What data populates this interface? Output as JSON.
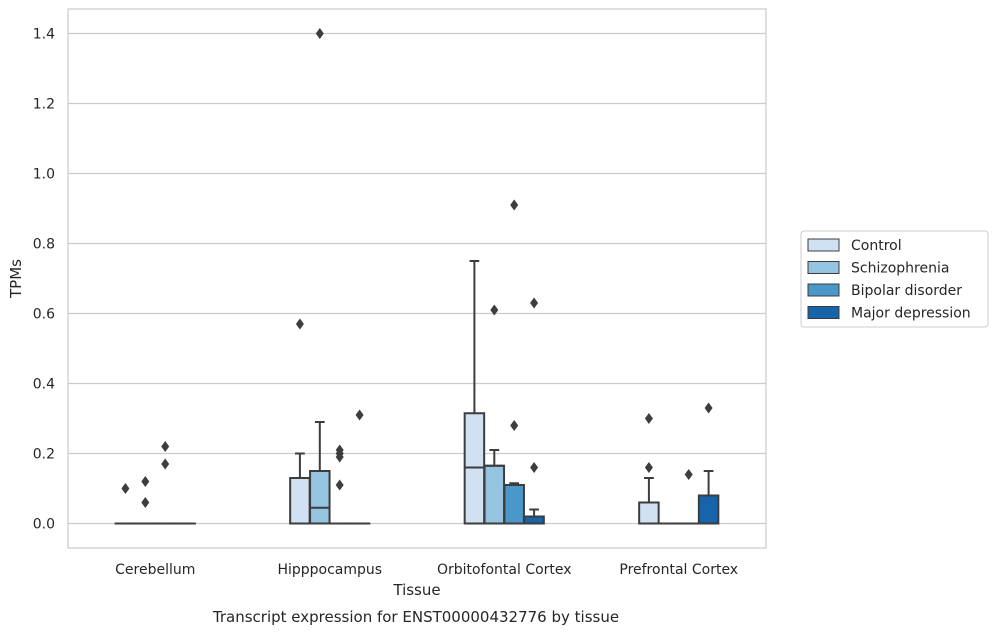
{
  "chart_data": {
    "type": "box",
    "title": "",
    "caption": "Transcript expression for ENST00000432776 by tissue",
    "xlabel": "Tissue",
    "ylabel": "TPMs",
    "ylim": [
      -0.07,
      1.47
    ],
    "yticks": [
      "0.0",
      "0.2",
      "0.4",
      "0.6",
      "0.8",
      "1.0",
      "1.2",
      "1.4"
    ],
    "grid": "horizontal",
    "legend_position": "right",
    "categories": [
      "Cerebellum",
      "Hipppocampus",
      "Orbitofontal Cortex",
      "Prefrontal Cortex"
    ],
    "series": [
      {
        "name": "Control",
        "color": "#d0e1f2",
        "boxes": [
          {
            "q1": 0,
            "median": 0,
            "q3": 0,
            "whisker_low": 0,
            "whisker_high": 0,
            "outliers": [
              0.1
            ]
          },
          {
            "q1": 0,
            "median": 0,
            "q3": 0.13,
            "whisker_low": 0,
            "whisker_high": 0.2,
            "outliers": [
              0.57
            ]
          },
          {
            "q1": 0,
            "median": 0.16,
            "q3": 0.315,
            "whisker_low": 0,
            "whisker_high": 0.75,
            "outliers": []
          },
          {
            "q1": 0,
            "median": 0,
            "q3": 0.06,
            "whisker_low": 0,
            "whisker_high": 0.13,
            "outliers": [
              0.16,
              0.3
            ]
          }
        ]
      },
      {
        "name": "Schizophrenia",
        "color": "#94c4df",
        "boxes": [
          {
            "q1": 0,
            "median": 0,
            "q3": 0,
            "whisker_low": 0,
            "whisker_high": 0,
            "outliers": [
              0.06,
              0.12
            ]
          },
          {
            "q1": 0,
            "median": 0.045,
            "q3": 0.15,
            "whisker_low": 0,
            "whisker_high": 0.29,
            "outliers": [
              1.4
            ]
          },
          {
            "q1": 0,
            "median": 0.165,
            "q3": 0.165,
            "whisker_low": 0,
            "whisker_high": 0.21,
            "outliers": [
              0.61
            ]
          },
          {
            "q1": 0,
            "median": 0,
            "q3": 0,
            "whisker_low": 0,
            "whisker_high": 0,
            "outliers": []
          }
        ]
      },
      {
        "name": "Bipolar disorder",
        "color": "#4a98c9",
        "boxes": [
          {
            "q1": 0,
            "median": 0,
            "q3": 0,
            "whisker_low": 0,
            "whisker_high": 0,
            "outliers": [
              0.17,
              0.22
            ]
          },
          {
            "q1": 0,
            "median": 0,
            "q3": 0,
            "whisker_low": 0,
            "whisker_high": 0,
            "outliers": [
              0.11,
              0.19,
              0.2,
              0.21
            ]
          },
          {
            "q1": 0,
            "median": 0.11,
            "q3": 0.11,
            "whisker_low": 0,
            "whisker_high": 0.115,
            "outliers": [
              0.28,
              0.91
            ]
          },
          {
            "q1": 0,
            "median": 0,
            "q3": 0,
            "whisker_low": 0,
            "whisker_high": 0,
            "outliers": [
              0.14
            ]
          }
        ]
      },
      {
        "name": "Major depression",
        "color": "#1764ab",
        "boxes": [
          {
            "q1": 0,
            "median": 0,
            "q3": 0,
            "whisker_low": 0,
            "whisker_high": 0,
            "outliers": []
          },
          {
            "q1": 0,
            "median": 0,
            "q3": 0,
            "whisker_low": 0,
            "whisker_high": 0,
            "outliers": [
              0.31
            ]
          },
          {
            "q1": 0,
            "median": 0.02,
            "q3": 0.02,
            "whisker_low": 0,
            "whisker_high": 0.04,
            "outliers": [
              0.16,
              0.63
            ]
          },
          {
            "q1": 0,
            "median": 0.08,
            "q3": 0.08,
            "whisker_low": 0,
            "whisker_high": 0.15,
            "outliers": [
              0.33
            ]
          }
        ]
      }
    ]
  }
}
